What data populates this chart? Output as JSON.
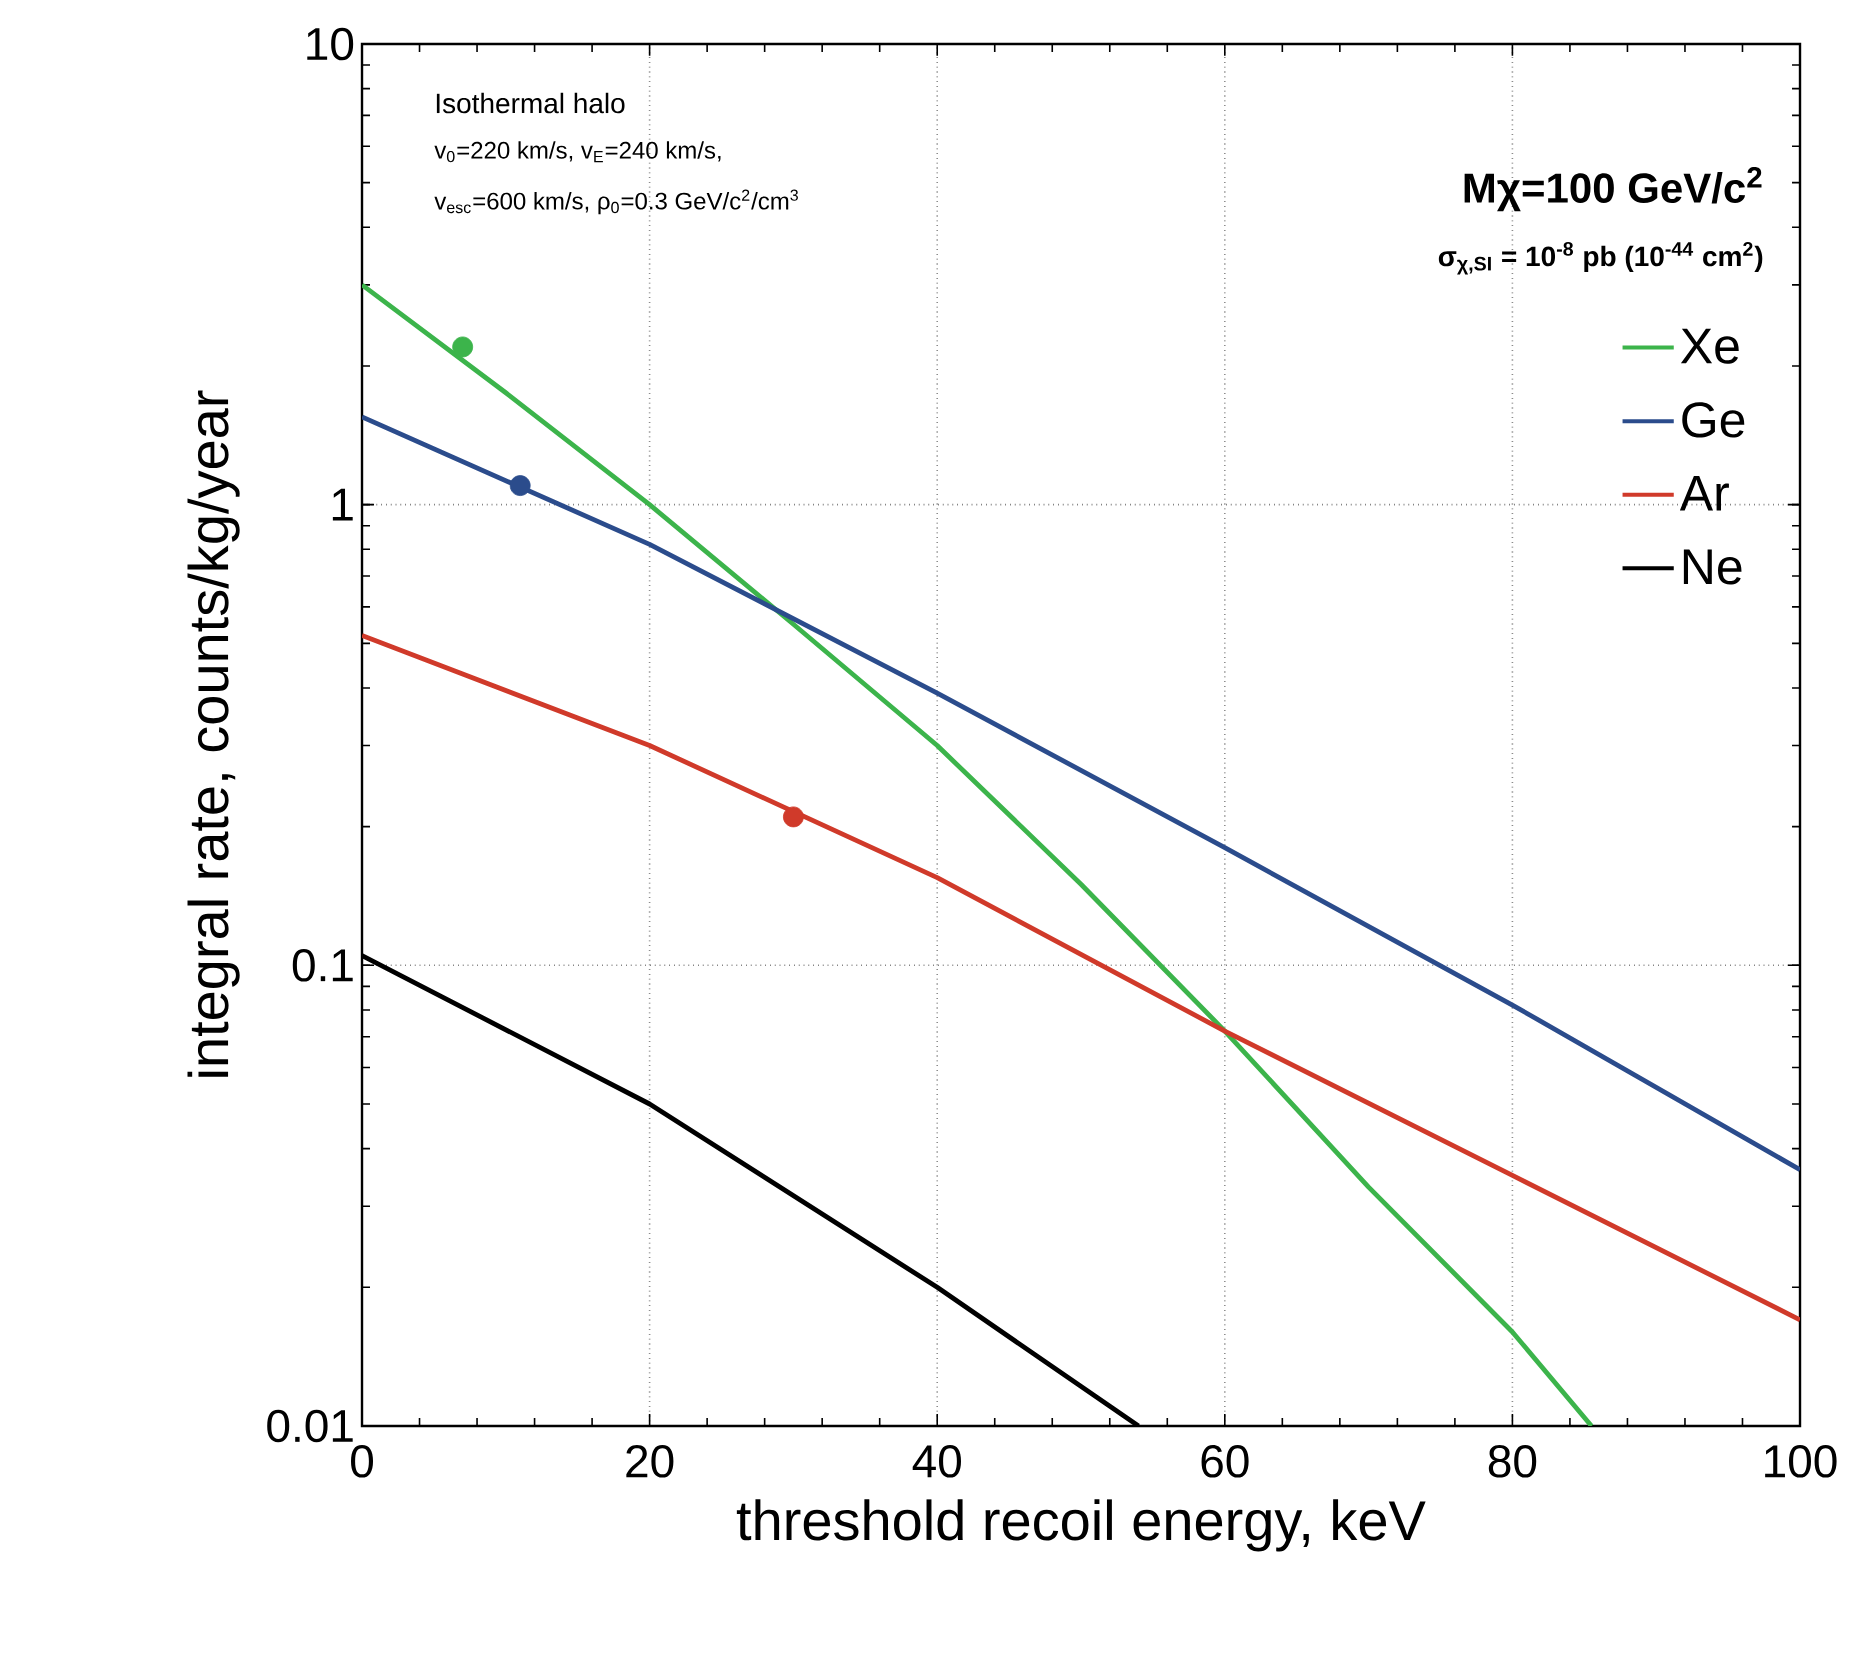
{
  "chart_data": {
    "type": "line",
    "xlabel": "threshold recoil energy, keV",
    "ylabel": "integral rate, counts/kg/year",
    "annotations": [
      "Isothermal halo",
      "v$_{0}$=220 km/s, v$_{E}$=240 km/s,",
      "v$_{esc}$=600 km/s, ρ$_{0}$=0.3 GeV/c$^{2}$/cm$^{3}$",
      "Mχ=100 GeV/c$^{2}$",
      "σ$_{χ,SI}$ = 10$^{-8}$ pb (10$^{-44}$ cm$^{2}$)"
    ],
    "xlim": [
      0,
      100
    ],
    "ylim": [
      0.01,
      10
    ],
    "xticks": [
      0,
      20,
      40,
      60,
      80,
      100
    ],
    "yticks": [
      0.01,
      0.1,
      1,
      10
    ],
    "log": "y",
    "grid": true,
    "legend": "right",
    "series": [
      {
        "name": "Xe",
        "color": "#3cb44b",
        "x": [
          0,
          10,
          20,
          30,
          40,
          50,
          60,
          70,
          80,
          85.5
        ],
        "values": [
          3.0,
          1.75,
          1.0,
          0.55,
          0.3,
          0.15,
          0.072,
          0.033,
          0.016,
          0.01
        ]
      },
      {
        "name": "Ge",
        "color": "#2b4c8c",
        "x": [
          0,
          20,
          40,
          60,
          80,
          100
        ],
        "values": [
          1.55,
          0.82,
          0.39,
          0.18,
          0.082,
          0.036
        ]
      },
      {
        "name": "Ar",
        "color": "#d03a2a",
        "x": [
          0,
          20,
          40,
          60,
          80,
          100
        ],
        "values": [
          0.52,
          0.3,
          0.155,
          0.072,
          0.035,
          0.017
        ]
      },
      {
        "name": "Ne",
        "color": "#000000",
        "x": [
          0,
          20,
          40,
          54
        ],
        "values": [
          0.105,
          0.05,
          0.02,
          0.01
        ]
      },
      {
        "type": "scatter",
        "marker": "circle",
        "color": "#3cb44b",
        "x": [
          7
        ],
        "values": [
          2.2
        ]
      },
      {
        "type": "scatter",
        "marker": "circle",
        "color": "#2b4c8c",
        "x": [
          11
        ],
        "values": [
          1.1
        ]
      },
      {
        "type": "scatter",
        "marker": "circle",
        "color": "#d03a2a",
        "x": [
          30
        ],
        "values": [
          0.21
        ]
      }
    ]
  }
}
